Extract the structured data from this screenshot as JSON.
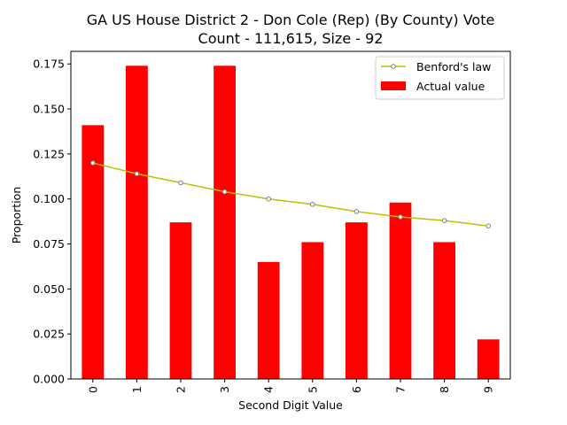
{
  "chart_data": {
    "type": "bar",
    "title_line1": "GA US House District 2 - Don Cole (Rep) (By County) Vote",
    "title_line2": "Count - 111,615, Size - 92",
    "xlabel": "Second Digit Value",
    "ylabel": "Proportion",
    "categories": [
      "0",
      "1",
      "2",
      "3",
      "4",
      "5",
      "6",
      "7",
      "8",
      "9"
    ],
    "ylim": [
      0,
      0.182
    ],
    "yticks": [
      {
        "value": 0.0,
        "label": "0.000"
      },
      {
        "value": 0.025,
        "label": "0.025"
      },
      {
        "value": 0.05,
        "label": "0.050"
      },
      {
        "value": 0.075,
        "label": "0.075"
      },
      {
        "value": 0.1,
        "label": "0.100"
      },
      {
        "value": 0.125,
        "label": "0.125"
      },
      {
        "value": 0.15,
        "label": "0.150"
      },
      {
        "value": 0.175,
        "label": "0.175"
      }
    ],
    "series": [
      {
        "name": "Actual value",
        "kind": "bar",
        "color": "#ff0000",
        "values": [
          0.141,
          0.174,
          0.087,
          0.174,
          0.065,
          0.076,
          0.087,
          0.098,
          0.076,
          0.022
        ]
      },
      {
        "name": "Benford's law",
        "kind": "line",
        "color": "#bfbf00",
        "marker_color": "#808080",
        "values": [
          0.12,
          0.114,
          0.109,
          0.104,
          0.1,
          0.097,
          0.093,
          0.09,
          0.088,
          0.085
        ]
      }
    ],
    "legend_position": "top-right",
    "grid": false
  }
}
